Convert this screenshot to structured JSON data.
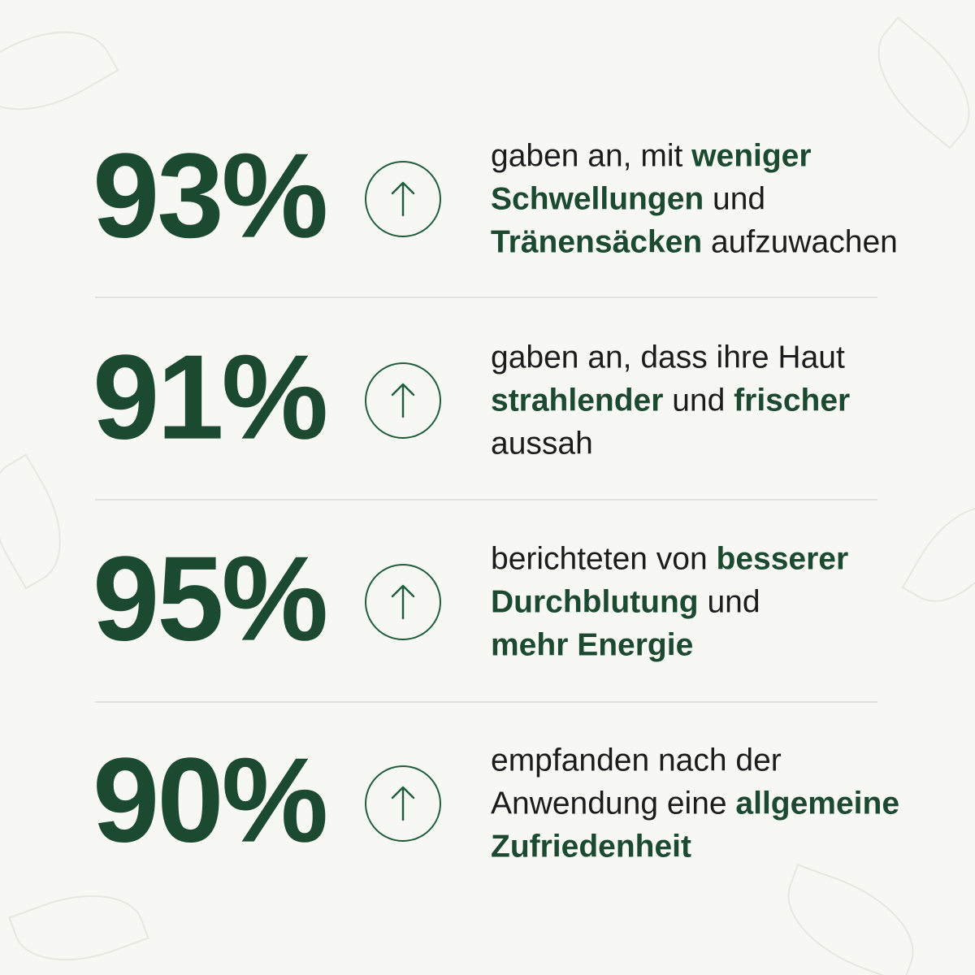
{
  "stats": [
    {
      "value": "93%",
      "lines": [
        [
          {
            "text": "gaben an, mit ",
            "bold": false
          },
          {
            "text": "weniger",
            "bold": true
          }
        ],
        [
          {
            "text": "Schwellungen",
            "bold": true
          },
          {
            "text": " und",
            "bold": false
          }
        ],
        [
          {
            "text": "Tränensäcken",
            "bold": true
          },
          {
            "text": " aufzuwachen",
            "bold": false
          }
        ]
      ]
    },
    {
      "value": "91%",
      "lines": [
        [
          {
            "text": "gaben an, dass ihre Haut",
            "bold": false
          }
        ],
        [
          {
            "text": "strahlender",
            "bold": true
          },
          {
            "text": " und ",
            "bold": false
          },
          {
            "text": "frischer",
            "bold": true
          }
        ],
        [
          {
            "text": "aussah",
            "bold": false
          }
        ]
      ]
    },
    {
      "value": "95%",
      "lines": [
        [
          {
            "text": "berichteten von ",
            "bold": false
          },
          {
            "text": "besserer",
            "bold": true
          }
        ],
        [
          {
            "text": "Durchblutung",
            "bold": true
          },
          {
            "text": " und",
            "bold": false
          }
        ],
        [
          {
            "text": "mehr Energie",
            "bold": true
          }
        ]
      ]
    },
    {
      "value": "90%",
      "lines": [
        [
          {
            "text": "empfanden nach der",
            "bold": false
          }
        ],
        [
          {
            "text": "Anwendung eine ",
            "bold": false
          },
          {
            "text": "allgemeine",
            "bold": true
          }
        ],
        [
          {
            "text": "Zufriedenheit",
            "bold": true
          }
        ]
      ]
    }
  ]
}
